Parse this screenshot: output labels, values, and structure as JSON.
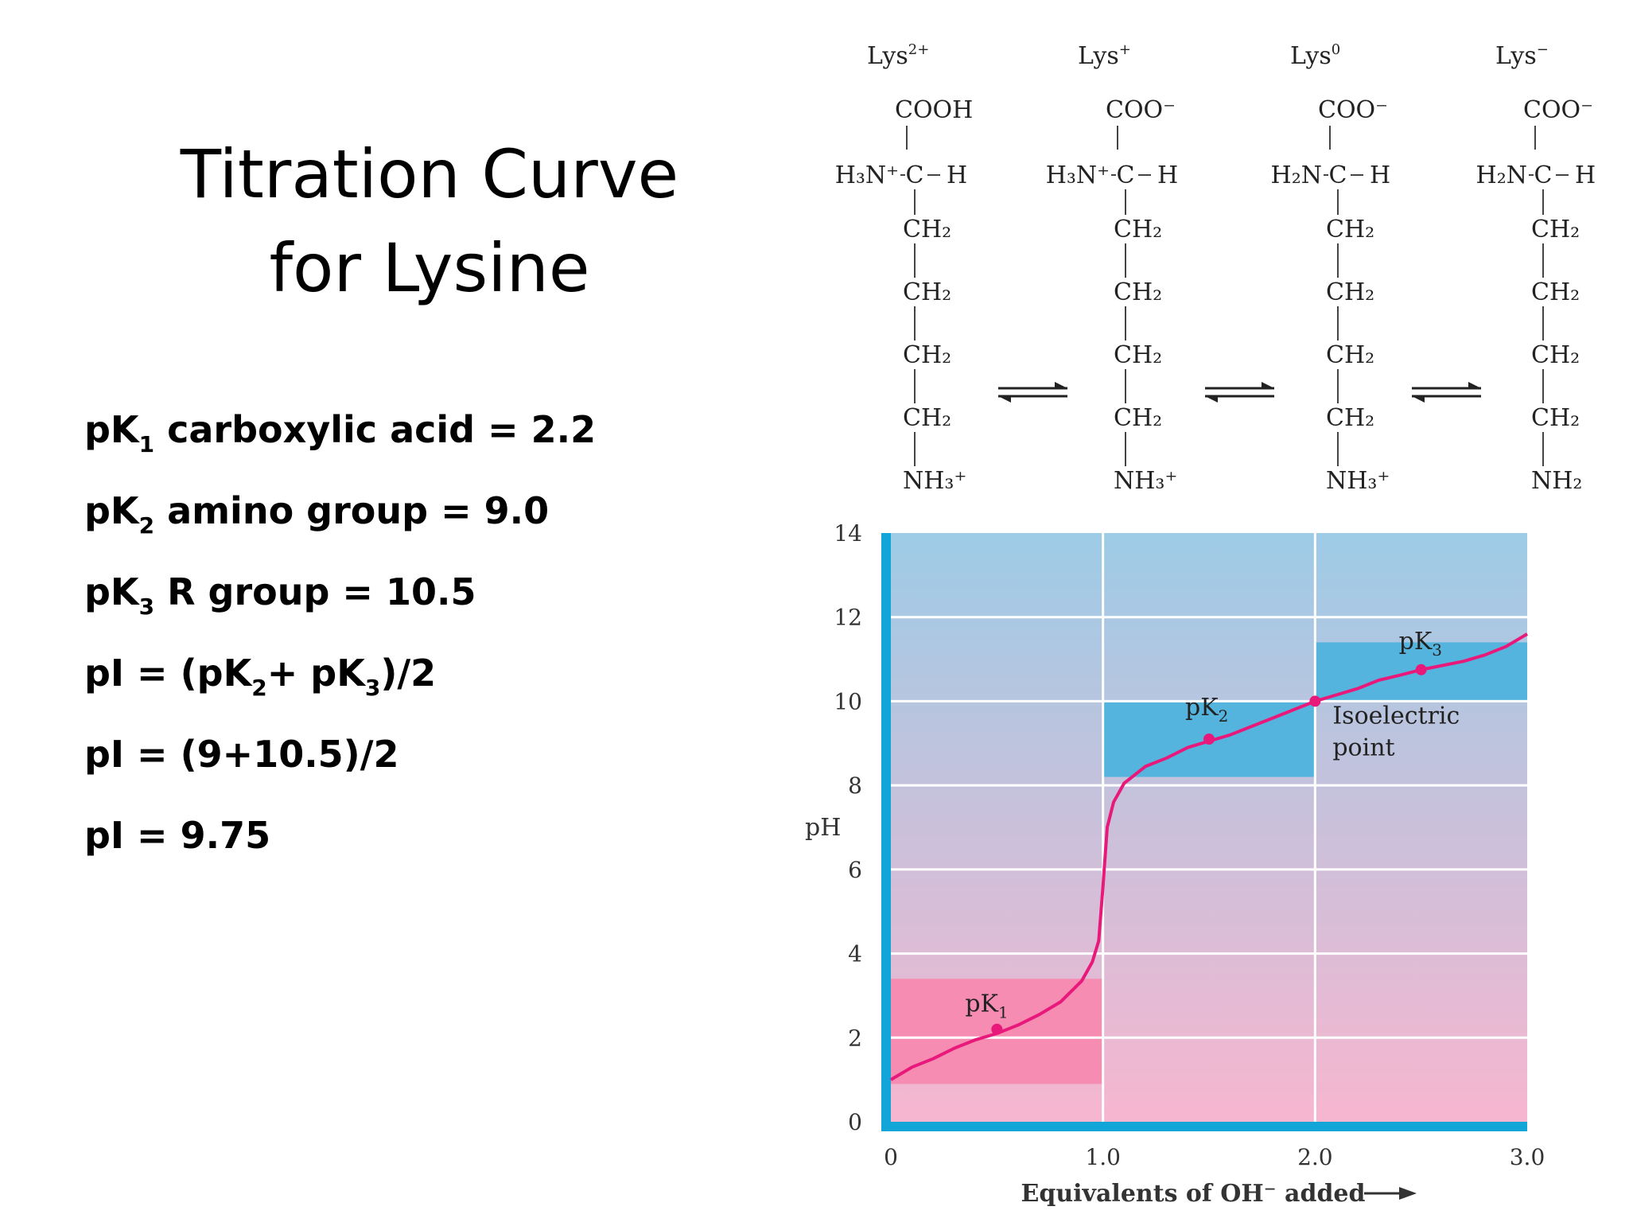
{
  "title": {
    "line1": "Titration Curve",
    "line2": "for Lysine"
  },
  "facts": [
    {
      "pre": "pK",
      "sub": "1",
      "post": " carboxylic acid = 2.2"
    },
    {
      "pre": "pK",
      "sub": "2",
      "post": " amino group = 9.0"
    },
    {
      "pre": "pK",
      "sub": "3",
      "post": " R group = 10.5"
    },
    {
      "parts": [
        {
          "t": "pI = (pK"
        },
        {
          "s": "2"
        },
        {
          "t": "+ pK"
        },
        {
          "s": "3"
        },
        {
          "t": ")/2"
        }
      ]
    },
    {
      "pre": "pI = (9+10.5)/2"
    },
    {
      "pre": "pI = 9.75"
    }
  ],
  "structures": [
    {
      "label": "Lys",
      "charge": "2+",
      "carboxyl": "COOH",
      "amine": "H₃N⁺",
      "side_n": "NH₃⁺"
    },
    {
      "label": "Lys",
      "charge": "+",
      "carboxyl": "COO⁻",
      "amine": "H₃N⁺",
      "side_n": "NH₃⁺"
    },
    {
      "label": "Lys",
      "charge": "0",
      "carboxyl": "COO⁻",
      "amine": "H₂N",
      "side_n": "NH₃⁺"
    },
    {
      "label": "Lys",
      "charge": "−",
      "carboxyl": "COO⁻",
      "amine": "H₂N",
      "side_n": "NH₂"
    }
  ],
  "chain_group": "CH₂",
  "alpha_carbon": "C",
  "alpha_h": "H",
  "colors": {
    "curve": "#e8197a",
    "points": "#e8197a",
    "bg_top": "#9dcbe6",
    "bg_bottom": "#f7b6cf",
    "box_blue": "#55b4dd",
    "box_pink": "#f78cb2",
    "axis_bar": "#12a5d8"
  },
  "chart_data": {
    "type": "line",
    "xlabel": "Equivalents of OH⁻ added",
    "ylabel": "pH",
    "xlim": [
      0,
      3
    ],
    "ylim": [
      0,
      14
    ],
    "x_ticks": [
      {
        "v": 0,
        "label": "0"
      },
      {
        "v": 1,
        "label": "1.0"
      },
      {
        "v": 2,
        "label": "2.0"
      },
      {
        "v": 3,
        "label": "3.0"
      }
    ],
    "y_ticks": [
      0,
      2,
      4,
      6,
      8,
      10,
      12,
      14
    ],
    "grid": true,
    "series": [
      {
        "x": [
          0,
          0.1,
          0.2,
          0.3,
          0.4,
          0.5,
          0.6,
          0.7,
          0.8,
          0.9,
          0.95,
          0.98,
          1.0,
          1.02,
          1.05,
          1.1,
          1.2,
          1.3,
          1.4,
          1.5,
          1.6,
          1.7,
          1.8,
          1.9,
          2.0,
          2.1,
          2.2,
          2.3,
          2.4,
          2.5,
          2.6,
          2.7,
          2.8,
          2.9,
          3.0
        ],
        "y": [
          1.0,
          1.3,
          1.5,
          1.75,
          1.95,
          2.1,
          2.3,
          2.55,
          2.85,
          3.35,
          3.8,
          4.3,
          5.6,
          7.0,
          7.6,
          8.05,
          8.45,
          8.65,
          8.9,
          9.05,
          9.2,
          9.4,
          9.6,
          9.8,
          10.0,
          10.15,
          10.3,
          10.5,
          10.62,
          10.75,
          10.85,
          10.95,
          11.1,
          11.3,
          11.6
        ]
      }
    ],
    "points": [
      {
        "x": 0.5,
        "y": 2.2,
        "label": "pK",
        "sub": "1"
      },
      {
        "x": 1.5,
        "y": 9.1,
        "label": "pK",
        "sub": "2"
      },
      {
        "x": 2.0,
        "y": 10.0,
        "label": ""
      },
      {
        "x": 2.5,
        "y": 10.75,
        "label": "pK",
        "sub": "3"
      }
    ],
    "boxes": [
      {
        "x": [
          0,
          1
        ],
        "y": [
          0.9,
          3.4
        ],
        "color": "pink"
      },
      {
        "x": [
          1,
          2
        ],
        "y": [
          8.2,
          10.0
        ],
        "color": "blue"
      },
      {
        "x": [
          2,
          3
        ],
        "y": [
          10.0,
          11.4
        ],
        "color": "blue"
      }
    ],
    "annotations": [
      {
        "text_lines": [
          "Isoelectric",
          "point"
        ]
      }
    ]
  }
}
